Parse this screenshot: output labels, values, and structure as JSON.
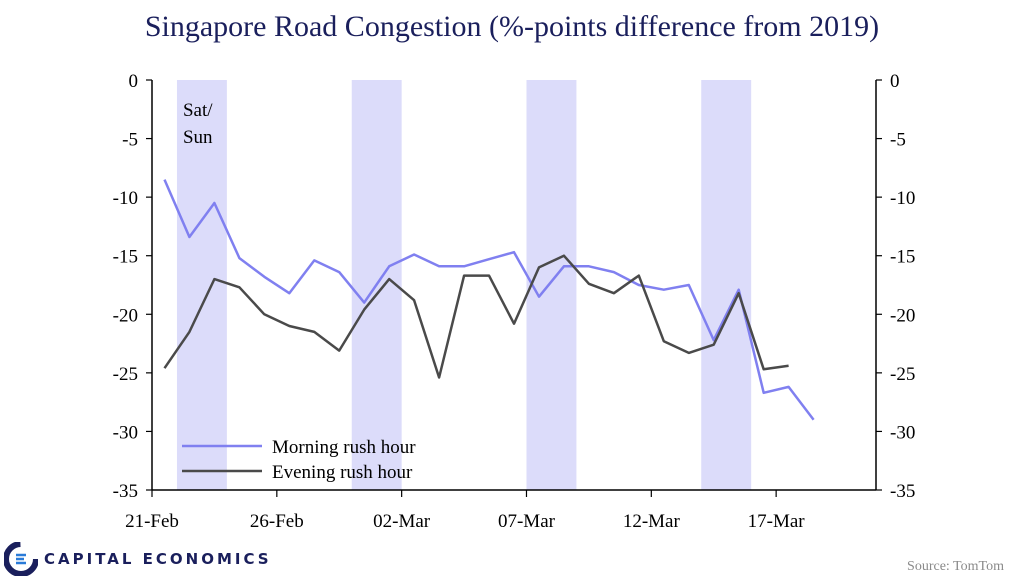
{
  "chart_data": {
    "type": "line",
    "title": "Singapore Road Congestion (%-points difference from 2019)",
    "ylim": [
      -35,
      0
    ],
    "yticks": [
      0,
      -5,
      -10,
      -15,
      -20,
      -25,
      -30,
      -35
    ],
    "xticks": [
      {
        "label": "21-Feb",
        "day": 0
      },
      {
        "label": "26-Feb",
        "day": 5
      },
      {
        "label": "02-Mar",
        "day": 10
      },
      {
        "label": "07-Mar",
        "day": 15
      },
      {
        "label": "12-Mar",
        "day": 20
      },
      {
        "label": "17-Mar",
        "day": 25
      }
    ],
    "xlim": [
      0,
      29
    ],
    "weekends": [
      [
        1,
        3
      ],
      [
        8,
        10
      ],
      [
        15,
        17
      ],
      [
        22,
        24
      ]
    ],
    "weekend_label": [
      "Sat/",
      "Sun"
    ],
    "series": [
      {
        "name": "Morning rush hour",
        "color": "#8080f0",
        "x": [
          0.5,
          1.5,
          2.5,
          3.5,
          4.5,
          5.5,
          6.5,
          7.5,
          8.5,
          9.5,
          10.5,
          11.5,
          12.5,
          13.5,
          14.5,
          15.5,
          16.5,
          17.5,
          18.5,
          19.5,
          20.5,
          21.5,
          22.5,
          23.5,
          24.5,
          25.5,
          26.5
        ],
        "values": [
          -8.5,
          -13.4,
          -10.5,
          -15.2,
          -16.8,
          -18.2,
          -15.4,
          -16.4,
          -19.0,
          -15.9,
          -14.9,
          -15.9,
          -15.9,
          -15.3,
          -14.7,
          -18.5,
          -15.9,
          -15.9,
          -16.4,
          -17.5,
          -17.9,
          -17.5,
          -22.2,
          -17.9,
          -26.7,
          -26.2,
          -29.0
        ]
      },
      {
        "name": "Evening rush hour",
        "color": "#4a4a4a",
        "x": [
          0.5,
          1.5,
          2.5,
          3.5,
          4.5,
          5.5,
          6.5,
          7.5,
          8.5,
          9.5,
          10.5,
          11.5,
          12.5,
          13.5,
          14.5,
          15.5,
          16.5,
          17.5,
          18.5,
          19.5,
          20.5,
          21.5,
          22.5,
          23.5,
          24.5,
          25.5
        ],
        "values": [
          -24.6,
          -21.5,
          -17.0,
          -17.7,
          -20.0,
          -21.0,
          -21.5,
          -23.1,
          -19.6,
          -17.0,
          -18.8,
          -25.4,
          -16.7,
          -16.7,
          -20.8,
          -16.0,
          -15.0,
          -17.4,
          -18.2,
          -16.7,
          -22.3,
          -23.3,
          -22.6,
          -18.2,
          -24.7,
          -24.4
        ]
      }
    ]
  },
  "source": "Source: TomTom",
  "brand": "CAPITAL ECONOMICS",
  "colors": {
    "weekend": "#dcdcfa",
    "axis": "#000000",
    "title": "#1a1f5c"
  }
}
